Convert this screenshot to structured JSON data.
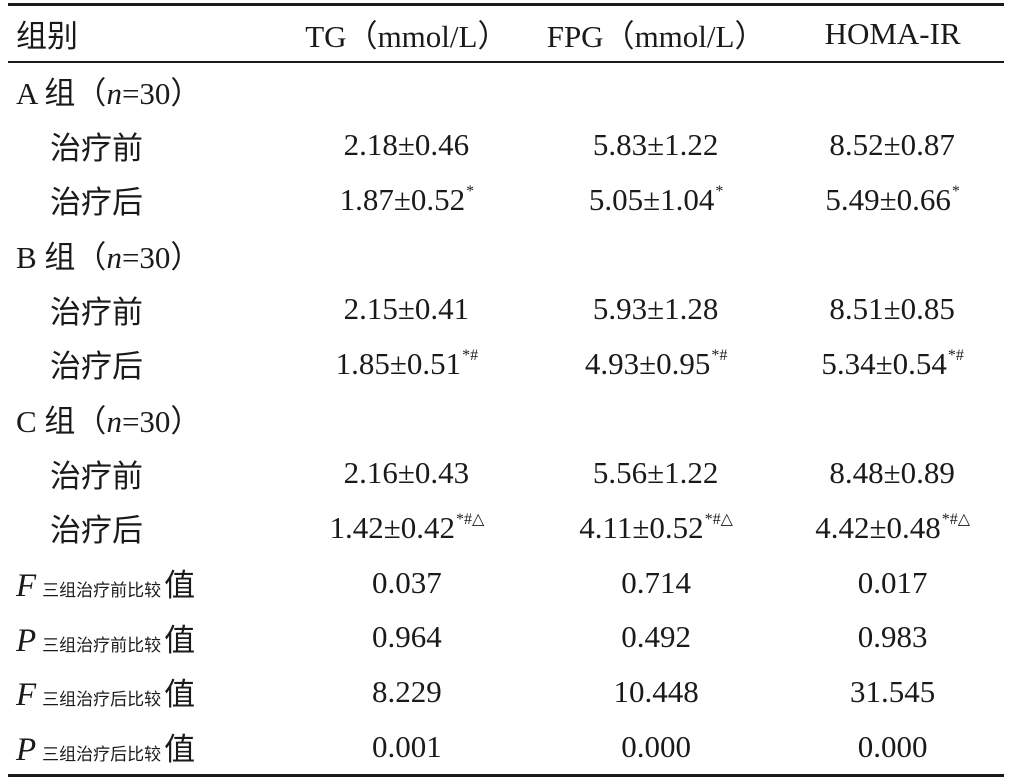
{
  "table": {
    "headers": [
      "组别",
      "TG（mmol/L）",
      "FPG（mmol/L）",
      "HOMA-IR"
    ],
    "groups": [
      {
        "label_prefix": "A 组（",
        "n_var": "n",
        "n_eq": "=30）",
        "rows": [
          {
            "label": "治疗前",
            "tg": "2.18±0.46",
            "tg_mark": "",
            "fpg": "5.83±1.22",
            "fpg_mark": "",
            "homa": "8.52±0.87",
            "homa_mark": ""
          },
          {
            "label": "治疗后",
            "tg": "1.87±0.52",
            "tg_mark": "*",
            "fpg": "5.05±1.04",
            "fpg_mark": "*",
            "homa": "5.49±0.66",
            "homa_mark": "*"
          }
        ]
      },
      {
        "label_prefix": "B 组（",
        "n_var": "n",
        "n_eq": "=30）",
        "rows": [
          {
            "label": "治疗前",
            "tg": "2.15±0.41",
            "tg_mark": "",
            "fpg": "5.93±1.28",
            "fpg_mark": "",
            "homa": "8.51±0.85",
            "homa_mark": ""
          },
          {
            "label": "治疗后",
            "tg": "1.85±0.51",
            "tg_mark": "*#",
            "fpg": "4.93±0.95",
            "fpg_mark": "*#",
            "homa": "5.34±0.54",
            "homa_mark": "*#"
          }
        ]
      },
      {
        "label_prefix": "C 组（",
        "n_var": "n",
        "n_eq": "=30）",
        "rows": [
          {
            "label": "治疗前",
            "tg": "2.16±0.43",
            "tg_mark": "",
            "fpg": "5.56±1.22",
            "fpg_mark": "",
            "homa": "8.48±0.89",
            "homa_mark": ""
          },
          {
            "label": "治疗后",
            "tg": "1.42±0.42",
            "tg_mark": "*#△",
            "fpg": "4.11±0.52",
            "fpg_mark": "*#△",
            "homa": "4.42±0.48",
            "homa_mark": "*#△"
          }
        ]
      }
    ],
    "stats": [
      {
        "symbol": "F",
        "subscript": "三组治疗前比较",
        "suffix": "值",
        "tg": "0.037",
        "fpg": "0.714",
        "homa": "0.017"
      },
      {
        "symbol": "P",
        "subscript": "三组治疗前比较",
        "suffix": "值",
        "tg": "0.964",
        "fpg": "0.492",
        "homa": "0.983"
      },
      {
        "symbol": "F",
        "subscript": "三组治疗后比较",
        "suffix": "值",
        "tg": "8.229",
        "fpg": "10.448",
        "homa": "31.545"
      },
      {
        "symbol": "P",
        "subscript": "三组治疗后比较",
        "suffix": "值",
        "tg": "0.001",
        "fpg": "0.000",
        "homa": "0.000"
      }
    ]
  }
}
